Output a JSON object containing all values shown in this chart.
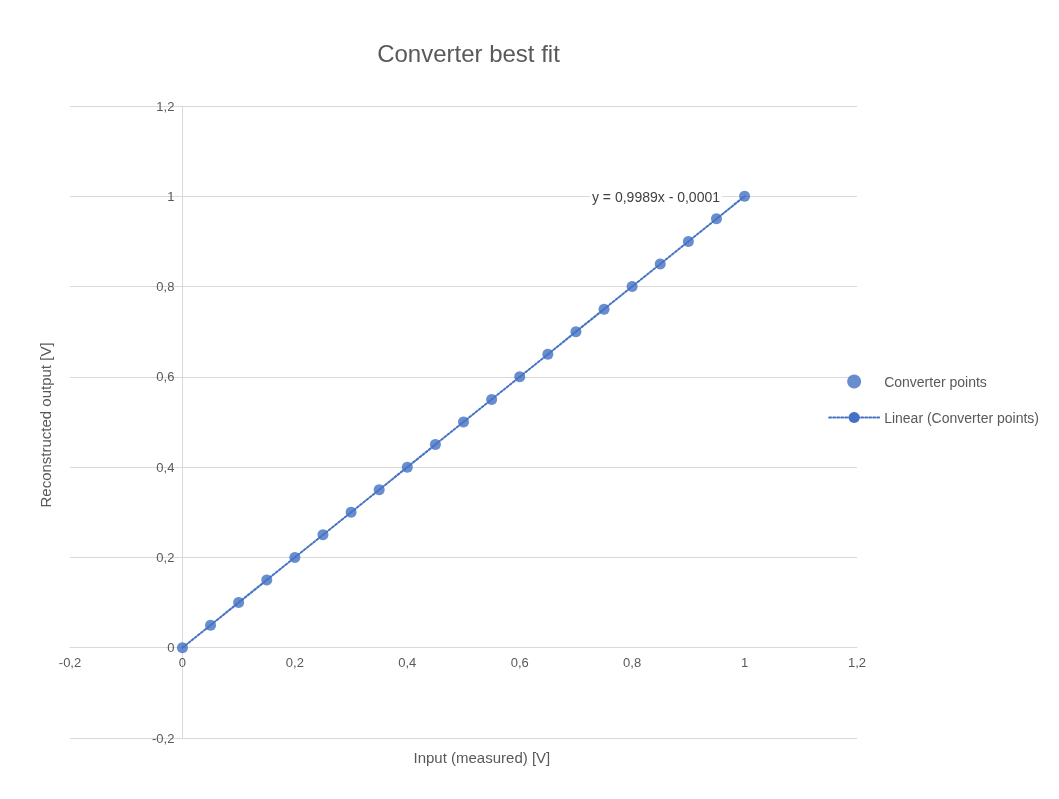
{
  "chart_data": {
    "type": "scatter",
    "title": "Converter best fit",
    "xlabel": "Input (measured) [V]",
    "ylabel": "Reconstructed output [V]",
    "x": [
      0,
      0.05,
      0.1,
      0.15,
      0.2,
      0.25,
      0.3,
      0.35,
      0.4,
      0.45,
      0.5,
      0.55,
      0.6,
      0.65,
      0.7,
      0.75,
      0.8,
      0.85,
      0.9,
      0.95,
      1
    ],
    "series": [
      {
        "name": "Converter points",
        "color": "#4472c4",
        "marker": "circle",
        "values": [
          0,
          0.05,
          0.1,
          0.15,
          0.2,
          0.25,
          0.3,
          0.35,
          0.4,
          0.45,
          0.5,
          0.55,
          0.6,
          0.65,
          0.7,
          0.75,
          0.8,
          0.85,
          0.9,
          0.95,
          1
        ]
      },
      {
        "name": "Linear (Converter points)",
        "type": "line",
        "color": "#4472c4",
        "line_style": "dotted",
        "marker": "none",
        "x": [
          0,
          1
        ],
        "values": [
          0,
          1
        ]
      }
    ],
    "annotations": [
      "y = 0,9989x - 0,0001"
    ],
    "xlim": [
      -0.2,
      1.2
    ],
    "ylim": [
      -0.2,
      1.2
    ],
    "xticks": [
      {
        "value": -0.2,
        "label": "-0,2"
      },
      0,
      {
        "value": 0.2,
        "label": "0,2"
      },
      {
        "value": 0.4,
        "label": "0,4"
      },
      {
        "value": 0.6,
        "label": "0,6"
      },
      {
        "value": 0.8,
        "label": "0,8"
      },
      1,
      {
        "value": 1.2,
        "label": "1,2"
      }
    ],
    "yticks": [
      {
        "value": -0.2,
        "label": "-0,2"
      },
      0,
      {
        "value": 0.2,
        "label": "0,2"
      },
      {
        "value": 0.4,
        "label": "0,4"
      },
      {
        "value": 0.6,
        "label": "0,6"
      },
      {
        "value": 0.8,
        "label": "0,8"
      },
      1,
      {
        "value": 1.2,
        "label": "1,2"
      }
    ],
    "grid": "y",
    "legend": "right"
  }
}
